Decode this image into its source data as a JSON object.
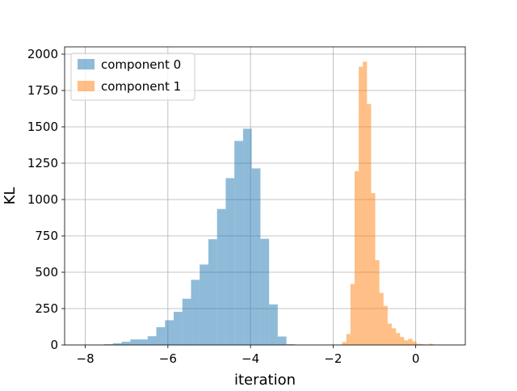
{
  "chart_data": {
    "type": "bar",
    "subtype": "histogram",
    "title": "",
    "xlabel": "iteration",
    "ylabel": "KL",
    "xlim": [
      -8.5,
      1.2
    ],
    "ylim": [
      0,
      2050
    ],
    "xticks": [
      -8,
      -6,
      -4,
      -2,
      0
    ],
    "xtick_labels": [
      "−8",
      "−6",
      "−4",
      "−2",
      "0"
    ],
    "yticks": [
      0,
      250,
      500,
      750,
      1000,
      1250,
      1500,
      1750,
      2000
    ],
    "ytick_labels": [
      "0",
      "250",
      "500",
      "750",
      "1000",
      "1250",
      "1500",
      "1750",
      "2000"
    ],
    "grid": true,
    "legend_position": "top-left",
    "series": [
      {
        "name": "component 0",
        "color": "#1f77b4",
        "alpha": 0.5,
        "bin_edges": [
          -7.54,
          -7.33,
          -7.12,
          -6.91,
          -6.7,
          -6.49,
          -6.28,
          -6.07,
          -5.86,
          -5.65,
          -5.44,
          -5.23,
          -5.02,
          -4.81,
          -4.6,
          -4.39,
          -4.18,
          -3.97,
          -3.76,
          -3.55,
          -3.34,
          -3.13,
          -2.92
        ],
        "counts": [
          5,
          12,
          22,
          38,
          38,
          60,
          122,
          170,
          228,
          318,
          448,
          553,
          727,
          935,
          1147,
          1403,
          1487,
          1214,
          730,
          279,
          58,
          5
        ]
      },
      {
        "name": "component 1",
        "color": "#ff7f0e",
        "alpha": 0.5,
        "bin_edges": [
          -1.78,
          -1.68,
          -1.58,
          -1.48,
          -1.38,
          -1.28,
          -1.18,
          -1.08,
          -0.98,
          -0.88,
          -0.78,
          -0.68,
          -0.58,
          -0.48,
          -0.38,
          -0.28,
          -0.18,
          -0.08,
          0.02,
          0.12,
          0.22,
          0.32,
          0.42,
          0.52
        ],
        "counts": [
          20,
          75,
          420,
          1195,
          1913,
          1948,
          1657,
          1044,
          583,
          358,
          268,
          147,
          115,
          82,
          55,
          32,
          42,
          24,
          8,
          5,
          3,
          8,
          2
        ]
      }
    ]
  }
}
